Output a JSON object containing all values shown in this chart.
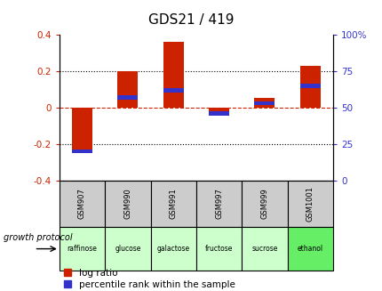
{
  "title": "GDS21 / 419",
  "samples": [
    "GSM907",
    "GSM990",
    "GSM991",
    "GSM997",
    "GSM999",
    "GSM1001"
  ],
  "protocols": [
    "raffinose",
    "glucose",
    "galactose",
    "fructose",
    "sucrose",
    "ethanol"
  ],
  "protocol_colors": [
    "#ccffcc",
    "#ccffcc",
    "#ccffcc",
    "#ccffcc",
    "#ccffcc",
    "#66ee66"
  ],
  "log_ratios": [
    -0.245,
    0.2,
    0.36,
    -0.02,
    0.055,
    0.23
  ],
  "percentile_ranks": [
    20,
    57,
    62,
    46,
    53,
    65
  ],
  "ylim_left": [
    -0.4,
    0.4
  ],
  "ylim_right": [
    0,
    100
  ],
  "left_ticks": [
    -0.4,
    -0.2,
    0.0,
    0.2,
    0.4
  ],
  "right_ticks": [
    0,
    25,
    50,
    75,
    100
  ],
  "left_tick_labels": [
    "-0.4",
    "-0.2",
    "0",
    "0.2",
    "0.4"
  ],
  "right_tick_labels": [
    "0",
    "25",
    "50",
    "75",
    "100%"
  ],
  "red_color": "#cc2200",
  "blue_color": "#3333cc",
  "bar_color_red": "#cc2200",
  "bar_color_blue": "#3333cc",
  "gray_color": "#cccccc",
  "title_fontsize": 11,
  "tick_fontsize": 7.5,
  "legend_fontsize": 7.5,
  "growth_protocol_label": "growth protocol",
  "legend_log_ratio": "log ratio",
  "legend_percentile": "percentile rank within the sample"
}
